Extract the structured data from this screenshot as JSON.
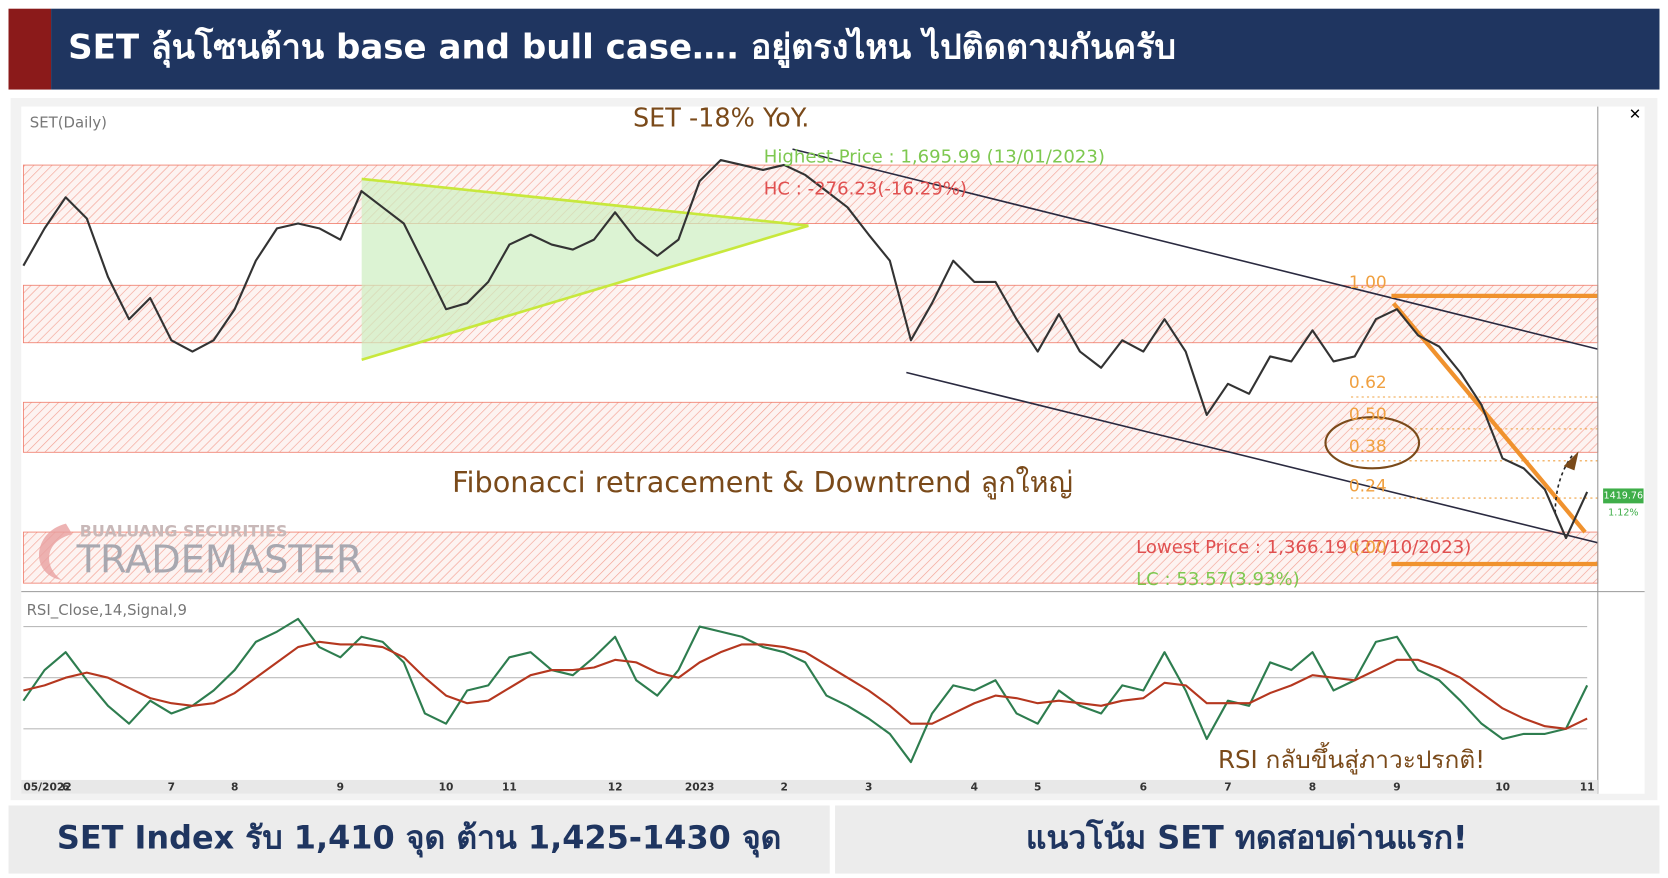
{
  "header": {
    "title": "SET ลุ้นโซนต้าน base and bull case…. อยู่ตรงไหน ไปติดตามกันครับ"
  },
  "footer": {
    "left": "SET Index รับ 1,410 จุด ต้าน 1,425-1430 จุด",
    "right": "แนวโน้ม SET ทดสอบด่านแรก!"
  },
  "watermark": {
    "company": "BUALUANG SECURITIES",
    "brand": "TRADEMASTER"
  },
  "chart_data": [
    {
      "type": "line",
      "title": "SET(Daily)",
      "color": "#333333",
      "ylim": [
        1345,
        1730
      ],
      "values": [
        1602,
        1632,
        1657,
        1640,
        1593,
        1559,
        1576,
        1542,
        1533,
        1542,
        1567,
        1606,
        1632,
        1636,
        1632,
        1623,
        1662,
        1649,
        1636,
        1602,
        1567,
        1572,
        1589,
        1619,
        1627,
        1619,
        1615,
        1623,
        1645,
        1623,
        1610,
        1623,
        1670,
        1687,
        1683,
        1679,
        1683,
        1675,
        1662,
        1649,
        1627,
        1606,
        1542,
        1572,
        1606,
        1589,
        1589,
        1559,
        1533,
        1563,
        1533,
        1520,
        1542,
        1533,
        1559,
        1533,
        1482,
        1507,
        1499,
        1529,
        1525,
        1550,
        1525,
        1529,
        1559,
        1567,
        1546,
        1537,
        1516,
        1490,
        1447,
        1439,
        1422,
        1383,
        1420
      ],
      "annotations": [
        "SET -18% YoY.",
        "Highest Price : 1,695.99 (13/01/2023)",
        "HC : -276.23(-16.29%)",
        "Fibonacci retracement & Downtrend ลูกใหญ่",
        "Lowest Price : 1,366.19 (27/10/2023)",
        "LC : 53.57(3.93%)"
      ],
      "fib_levels": [
        "1.00",
        "0.62",
        "0.50",
        "0.38",
        "0.24",
        "0.00"
      ],
      "last_price": "1419.76",
      "last_change": "1.12%"
    },
    {
      "type": "line",
      "title": "RSI_Close,14,Signal,9",
      "ylim": [
        5,
        82
      ],
      "hlines": [
        30,
        50,
        70
      ],
      "annotation": "RSI กลับขึ้นสู่ภาวะปรกติ!",
      "categories": [
        "05/2022",
        null,
        "6",
        null,
        null,
        null,
        null,
        "7",
        null,
        null,
        "8",
        null,
        null,
        null,
        null,
        "9",
        null,
        null,
        null,
        null,
        "10",
        null,
        null,
        "11",
        null,
        null,
        null,
        null,
        "12",
        null,
        null,
        null,
        "2023",
        null,
        null,
        null,
        "2",
        null,
        null,
        null,
        "3",
        null,
        null,
        null,
        null,
        "4",
        null,
        null,
        "5",
        null,
        null,
        null,
        null,
        "6",
        null,
        null,
        null,
        "7",
        null,
        null,
        null,
        "8",
        null,
        null,
        null,
        "9",
        null,
        null,
        null,
        null,
        "10",
        null,
        null,
        null,
        "11"
      ],
      "series": [
        {
          "color": "#2e7d4f",
          "values": [
            41,
            53,
            60,
            49,
            39,
            32,
            41,
            36,
            39,
            45,
            53,
            64,
            68,
            73,
            62,
            58,
            66,
            64,
            56,
            36,
            32,
            45,
            47,
            58,
            60,
            53,
            51,
            58,
            66,
            49,
            43,
            53,
            70,
            68,
            66,
            62,
            60,
            56,
            43,
            39,
            34,
            28,
            17,
            36,
            47,
            45,
            49,
            36,
            32,
            45,
            39,
            36,
            47,
            45,
            60,
            45,
            26,
            41,
            39,
            56,
            53,
            60,
            45,
            49,
            64,
            66,
            53,
            49,
            41,
            32,
            26,
            28,
            28,
            30,
            47
          ]
        },
        {
          "color": "#b5371f",
          "values": [
            45,
            47,
            50,
            52,
            50,
            46,
            42,
            40,
            39,
            40,
            44,
            50,
            56,
            62,
            64,
            63,
            63,
            62,
            58,
            50,
            43,
            40,
            41,
            46,
            51,
            53,
            53,
            54,
            57,
            56,
            52,
            50,
            56,
            60,
            63,
            63,
            62,
            60,
            55,
            50,
            45,
            39,
            32,
            32,
            36,
            40,
            43,
            42,
            40,
            41,
            40,
            39,
            41,
            42,
            48,
            47,
            40,
            40,
            40,
            44,
            47,
            51,
            50,
            49,
            53,
            57,
            57,
            54,
            50,
            44,
            38,
            34,
            31,
            30,
            34
          ]
        }
      ]
    }
  ]
}
